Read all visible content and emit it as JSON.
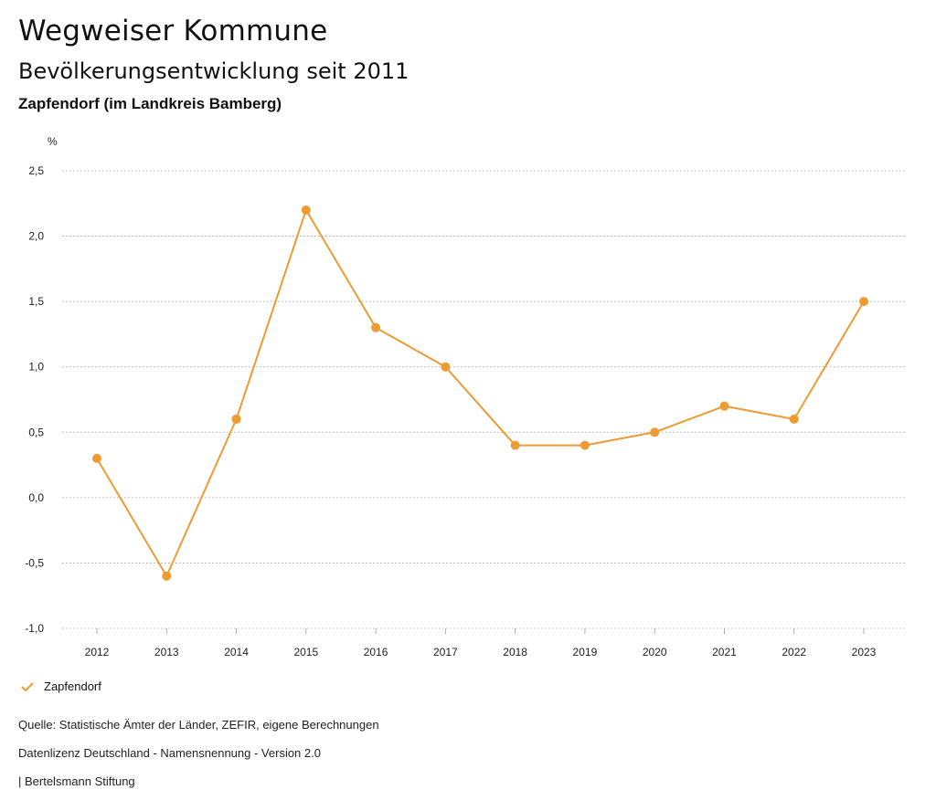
{
  "header": {
    "title": "Wegweiser Kommune",
    "subtitle": "Bevölkerungsentwicklung seit 2011",
    "region": "Zapfendorf (im Landkreis Bamberg)"
  },
  "chart_data": {
    "type": "line",
    "unit_label": "%",
    "x": [
      "2012",
      "2013",
      "2014",
      "2015",
      "2016",
      "2017",
      "2018",
      "2019",
      "2020",
      "2021",
      "2022",
      "2023"
    ],
    "series": [
      {
        "name": "Zapfendorf",
        "color": "#ED9B33",
        "values": [
          0.3,
          -0.6,
          0.6,
          2.2,
          1.3,
          1.0,
          0.4,
          0.4,
          0.5,
          0.7,
          0.6,
          1.5
        ]
      }
    ],
    "ylim": [
      -1.0,
      2.5
    ],
    "yticks": [
      2.5,
      2.0,
      1.5,
      1.0,
      0.5,
      0.0,
      -0.5,
      -1.0
    ],
    "ytick_labels": [
      "2,5",
      "2,0",
      "1,5",
      "1,0",
      "0,5",
      "0,0",
      "-0,5",
      "-1,0"
    ],
    "grid": true,
    "legend_position": "bottom-left"
  },
  "legend": {
    "label": "Zapfendorf"
  },
  "footer": {
    "source": "Quelle: Statistische Ämter der Länder, ZEFIR, eigene Berechnungen",
    "license": "Datenlizenz Deutschland - Namensnennung - Version 2.0",
    "publisher": "| Bertelsmann Stiftung"
  }
}
